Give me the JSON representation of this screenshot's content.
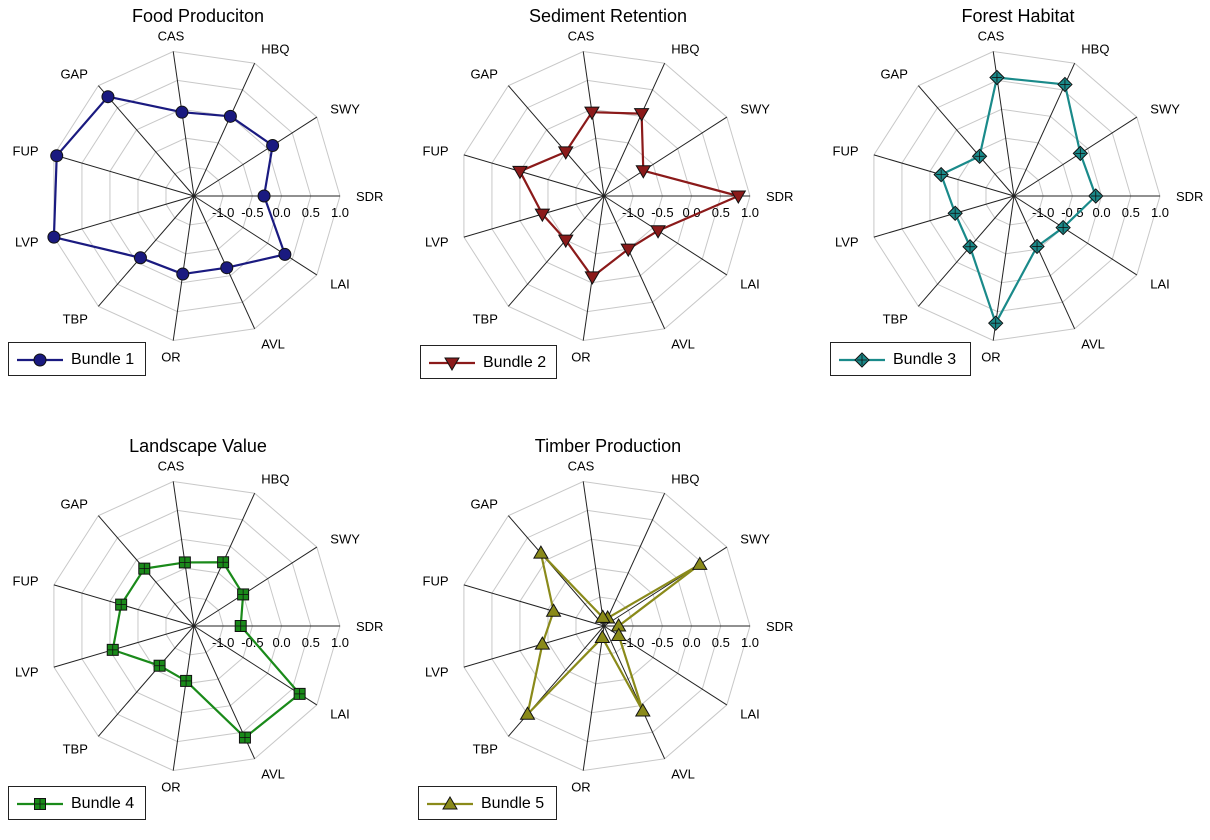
{
  "chart_data": [
    {
      "type": "radar",
      "title": "Food Produciton",
      "axes": [
        "SDR",
        "SWY",
        "HBQ",
        "CAS",
        "GAP",
        "FUP",
        "LVP",
        "TBP",
        "OR",
        "AVL",
        "LAI"
      ],
      "tick_labels": [
        "-1.0",
        "-0.5",
        "0.0",
        "0.5",
        "1.0"
      ],
      "rlim": [
        -1.5,
        1.0
      ],
      "grid": true,
      "legend_position": "bottom-left",
      "series": [
        {
          "name": "Bundle 1",
          "marker": "circle",
          "color": "#1a1a80",
          "values": [
            -0.3,
            0.1,
            0.0,
            -0.05,
            0.75,
            0.95,
            1.0,
            -0.1,
            -0.15,
            -0.15,
            0.35
          ]
        }
      ]
    },
    {
      "type": "radar",
      "title": "Sediment Retention",
      "axes": [
        "SDR",
        "SWY",
        "HBQ",
        "CAS",
        "GAP",
        "FUP",
        "LVP",
        "TBP",
        "OR",
        "AVL",
        "LAI"
      ],
      "tick_labels": [
        "-1.0",
        "-0.5",
        "0.0",
        "0.5",
        "1.0"
      ],
      "rlim": [
        -1.5,
        1.0
      ],
      "grid": true,
      "legend_position": "bottom-left",
      "series": [
        {
          "name": "Bundle 2",
          "marker": "triangle-down",
          "color": "#8b1a1a",
          "values": [
            0.8,
            -0.7,
            0.05,
            -0.05,
            -0.5,
            0.0,
            -0.4,
            -0.5,
            -0.1,
            -0.5,
            -0.4
          ]
        }
      ]
    },
    {
      "type": "radar",
      "title": "Forest Habitat",
      "axes": [
        "SDR",
        "SWY",
        "HBQ",
        "CAS",
        "GAP",
        "FUP",
        "LVP",
        "TBP",
        "OR",
        "AVL",
        "LAI"
      ],
      "tick_labels": [
        "-1.0",
        "-0.5",
        "0.0",
        "0.5",
        "1.0"
      ],
      "rlim": [
        -1.5,
        1.0
      ],
      "grid": true,
      "legend_position": "bottom-left",
      "series": [
        {
          "name": "Bundle 3",
          "marker": "diamond",
          "color": "#1a8a8a",
          "values": [
            -0.1,
            -0.15,
            0.6,
            0.55,
            -0.6,
            -0.2,
            -0.45,
            -0.35,
            0.7,
            -0.55,
            -0.5
          ]
        }
      ]
    },
    {
      "type": "radar",
      "title": "Landscape Value",
      "axes": [
        "SDR",
        "SWY",
        "HBQ",
        "CAS",
        "GAP",
        "FUP",
        "LVP",
        "TBP",
        "OR",
        "AVL",
        "LAI"
      ],
      "tick_labels": [
        "-1.0",
        "-0.5",
        "0.0",
        "0.5",
        "1.0"
      ],
      "rlim": [
        -1.5,
        1.0
      ],
      "grid": true,
      "legend_position": "bottom-left",
      "series": [
        {
          "name": "Bundle 4",
          "marker": "square",
          "color": "#1a8a1a",
          "values": [
            -0.7,
            -0.5,
            -0.3,
            -0.4,
            -0.2,
            -0.2,
            -0.05,
            -0.6,
            -0.55,
            0.6,
            0.65
          ]
        }
      ]
    },
    {
      "type": "radar",
      "title": "Timber Production",
      "axes": [
        "SDR",
        "SWY",
        "HBQ",
        "CAS",
        "GAP",
        "FUP",
        "LVP",
        "TBP",
        "OR",
        "AVL",
        "LAI"
      ],
      "tick_labels": [
        "-1.0",
        "-0.5",
        "0.0",
        "0.5",
        "1.0"
      ],
      "rlim": [
        -1.5,
        1.0
      ],
      "grid": true,
      "legend_position": "bottom-left",
      "series": [
        {
          "name": "Bundle 5",
          "marker": "triangle-up",
          "color": "#8a8a1a",
          "values": [
            -1.25,
            0.45,
            -1.35,
            -1.35,
            0.15,
            -0.6,
            -0.4,
            0.5,
            -1.3,
            0.1,
            -1.2
          ]
        }
      ]
    }
  ]
}
